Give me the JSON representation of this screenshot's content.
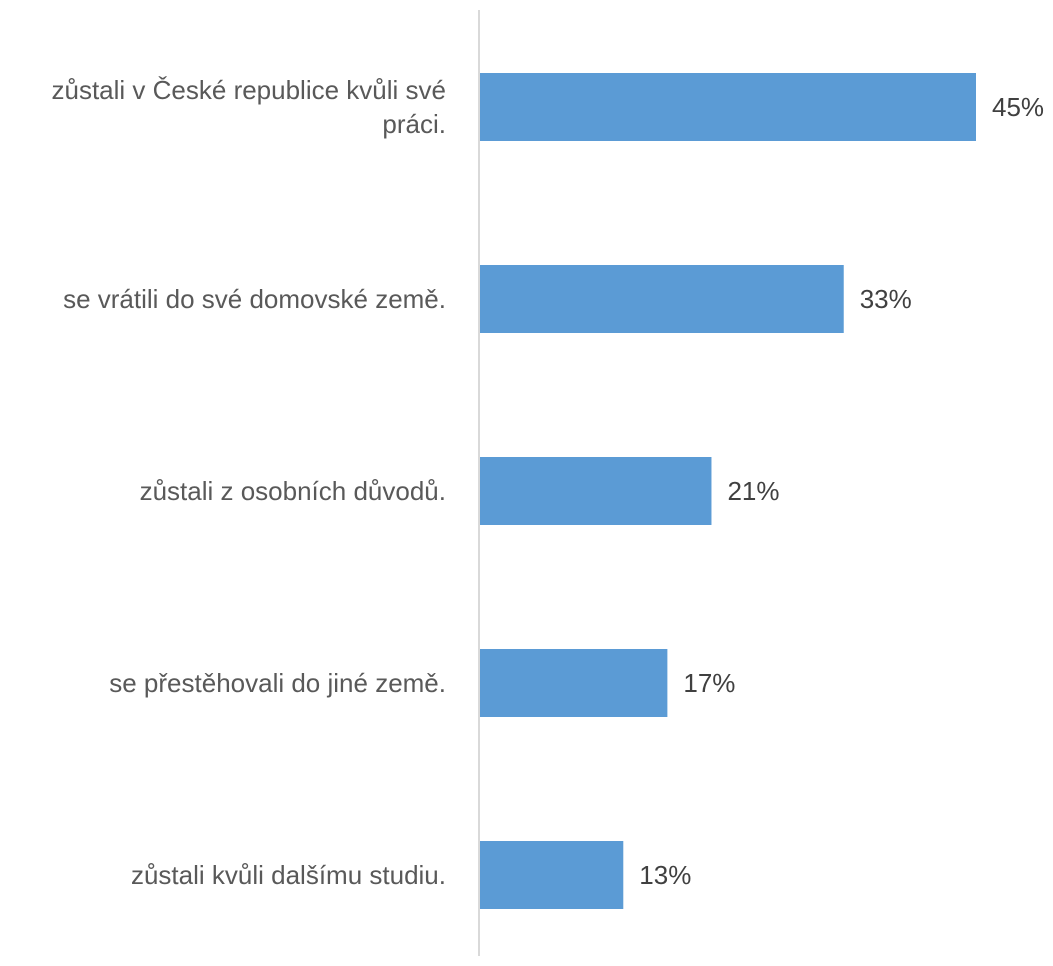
{
  "chart_data": {
    "type": "bar",
    "orientation": "horizontal",
    "categories": [
      [
        "zůstali v České republice kvůli své",
        "práci."
      ],
      [
        "se vrátili do své domovské země."
      ],
      [
        "zůstali z osobních důvodů."
      ],
      [
        "se přestěhovali do jiné země."
      ],
      [
        "zůstali kvůli dalšímu studiu."
      ]
    ],
    "values": [
      45,
      33,
      21,
      17,
      13
    ],
    "value_labels": [
      "45%",
      "33%",
      "21%",
      "17%",
      "13%"
    ],
    "unit": "%",
    "bar_color": "#5b9bd5",
    "axis_color": "#d9d9d9",
    "grid": false,
    "legend": "none"
  }
}
